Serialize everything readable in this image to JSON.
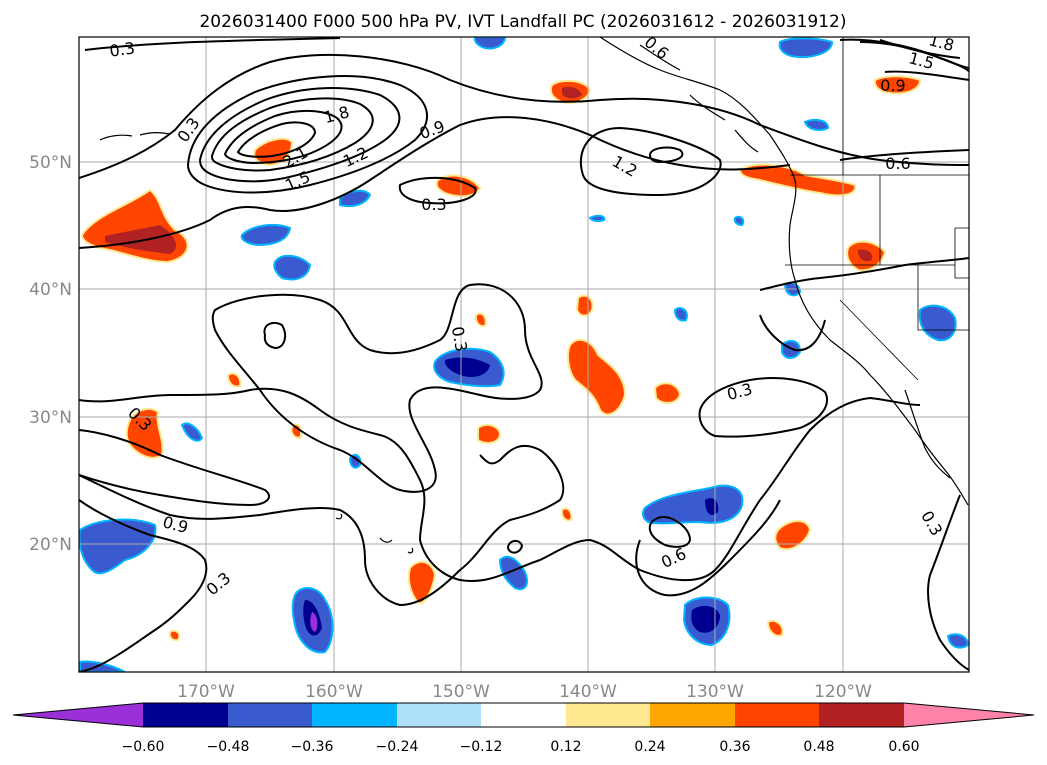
{
  "title": "2026031400 F000 500 hPa PV, IVT Landfall PC (2026031612 - 2026031912)",
  "map": {
    "lat_labels": [
      "50°N",
      "40°N",
      "30°N",
      "20°N"
    ],
    "lon_labels": [
      "170°W",
      "160°W",
      "150°W",
      "140°W",
      "130°W",
      "120°W"
    ],
    "contour_labels": [
      "0.3",
      "0.3",
      "0.3",
      "1.8",
      "2.1",
      "1.5",
      "1.2",
      "0.9",
      "1.2",
      "0.6",
      "1.8",
      "1.5",
      "0.9",
      "0.3",
      "0.6",
      "0.3",
      "0.9",
      "0.3",
      "0.6",
      "0.3",
      "0.3"
    ]
  },
  "colorbar": {
    "ticks": [
      "−0.60",
      "−0.48",
      "−0.36",
      "−0.24",
      "−0.12",
      "0.12",
      "0.24",
      "0.36",
      "0.48",
      "0.60"
    ],
    "colors": [
      "#9b30d9",
      "#000090",
      "#3a5bd0",
      "#00b4ff",
      "#aee0fa",
      "#ffffff",
      "#ffe890",
      "#ffa500",
      "#ff4500",
      "#b22222",
      "#ff82a9"
    ]
  }
}
